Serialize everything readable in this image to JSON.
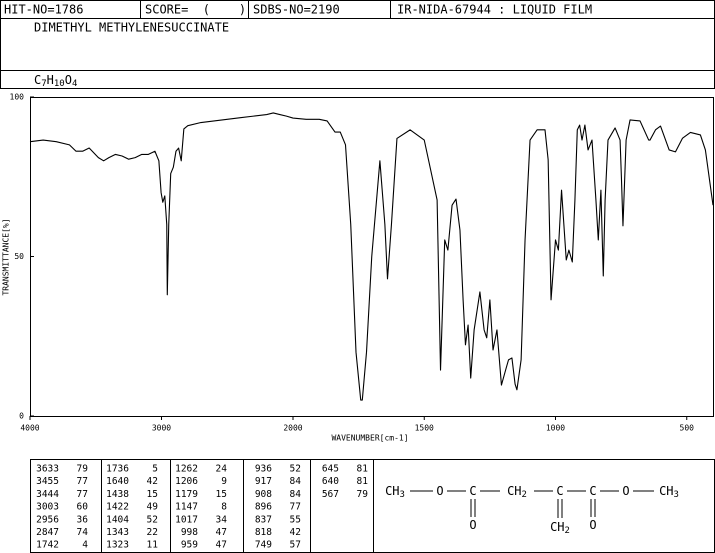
{
  "header": {
    "hit_no": "HIT-NO=1786",
    "score": "SCORE=  (    )",
    "sdbs_no": "SDBS-NO=2190",
    "method": "IR-NIDA-67944 : LIQUID FILM",
    "name": "DIMETHYL METHYLENESUCCINATE",
    "formula": "C7H10O4"
  },
  "chart_data": {
    "type": "line",
    "x_label": "WAVENUMBER[cm-1]",
    "y_label": "TRANSMITTANCE[%]",
    "x": [
      4000,
      3900,
      3800,
      3700,
      3650,
      3600,
      3550,
      3480,
      3440,
      3400,
      3350,
      3300,
      3250,
      3200,
      3150,
      3100,
      3050,
      3020,
      3003,
      2990,
      2975,
      2960,
      2956,
      2945,
      2930,
      2910,
      2890,
      2870,
      2850,
      2840,
      2830,
      2800,
      2700,
      2600,
      2500,
      2400,
      2300,
      2200,
      2150,
      2100,
      2050,
      2000,
      1950,
      1900,
      1870,
      1840,
      1820,
      1800,
      1780,
      1760,
      1742,
      1736,
      1720,
      1700,
      1669,
      1650,
      1640,
      1625,
      1604,
      1554,
      1500,
      1451,
      1438,
      1422,
      1410,
      1394,
      1379,
      1364,
      1352,
      1343,
      1333,
      1323,
      1310,
      1288,
      1272,
      1262,
      1250,
      1238,
      1223,
      1206,
      1188,
      1179,
      1166,
      1154,
      1147,
      1131,
      1116,
      1097,
      1070,
      1040,
      1028,
      1017,
      1000,
      989,
      977,
      959,
      949,
      936,
      926,
      917,
      908,
      899,
      888,
      876,
      861,
      846,
      837,
      827,
      818,
      811,
      800,
      773,
      754,
      749,
      743,
      731,
      716,
      678,
      645,
      640,
      619,
      600,
      567,
      543,
      516,
      486,
      448,
      429,
      400
    ],
    "values": [
      86,
      86.5,
      86,
      85,
      83,
      83,
      84,
      81,
      80,
      81,
      82,
      81.5,
      80.5,
      81,
      82,
      82,
      83,
      80,
      70,
      67,
      69,
      60,
      38,
      60,
      76,
      78,
      83,
      84,
      80,
      85,
      90,
      91,
      92,
      92.5,
      93,
      93.5,
      94,
      94.5,
      95,
      94.5,
      94,
      93.4,
      93,
      93,
      92.5,
      89,
      89,
      85,
      60,
      20,
      5,
      5,
      20,
      50,
      80,
      60,
      43,
      60,
      87,
      89.7,
      86.5,
      67.7,
      14.4,
      55.2,
      52,
      66.1,
      68,
      58.3,
      36.4,
      22.3,
      28.5,
      11.9,
      27,
      38.9,
      27,
      24.5,
      36.4,
      20.7,
      27,
      9.7,
      15,
      17.6,
      18.2,
      10,
      8.2,
      17.6,
      55.2,
      86.5,
      89.7,
      89.7,
      80.3,
      36.4,
      55.2,
      52,
      70.8,
      48.9,
      52,
      48.3,
      67.7,
      89.7,
      91.2,
      86.5,
      91.2,
      83.4,
      86.5,
      67.7,
      55.2,
      70.8,
      43.9,
      67.7,
      86.5,
      90.3,
      86.5,
      75,
      59.6,
      86.5,
      92.8,
      92.5,
      86.5,
      86.5,
      89.7,
      90.9,
      83.4,
      82.8,
      87.1,
      88.9,
      88.1,
      83.4,
      66.1
    ],
    "color": "#000000",
    "xlim": [
      4000,
      400
    ],
    "xscale_break": 2000,
    "xticks": [
      4000,
      3000,
      2000,
      1500,
      1000,
      500
    ],
    "ylim": [
      0,
      100
    ],
    "yticks": [
      0,
      50,
      100
    ]
  },
  "peak_table": [
    [
      [
        3633,
        79
      ],
      [
        3455,
        77
      ],
      [
        3444,
        77
      ],
      [
        3003,
        60
      ],
      [
        2956,
        36
      ],
      [
        2847,
        74
      ],
      [
        1742,
        4
      ]
    ],
    [
      [
        1736,
        5
      ],
      [
        1640,
        42
      ],
      [
        1438,
        15
      ],
      [
        1422,
        49
      ],
      [
        1404,
        52
      ],
      [
        1343,
        22
      ],
      [
        1323,
        11
      ]
    ],
    [
      [
        1262,
        24
      ],
      [
        1206,
        9
      ],
      [
        1179,
        15
      ],
      [
        1147,
        8
      ],
      [
        1017,
        34
      ],
      [
        998,
        47
      ],
      [
        959,
        47
      ]
    ],
    [
      [
        936,
        52
      ],
      [
        917,
        84
      ],
      [
        908,
        84
      ],
      [
        896,
        77
      ],
      [
        837,
        55
      ],
      [
        818,
        42
      ],
      [
        749,
        57
      ]
    ],
    [
      [
        645,
        81
      ],
      [
        640,
        81
      ],
      [
        567,
        79
      ]
    ]
  ],
  "structure": {
    "chain": [
      "CH3",
      "O",
      "C",
      "CH2",
      "C",
      "C",
      "O",
      "CH3"
    ],
    "below": [
      "O",
      "CH2",
      "O"
    ]
  }
}
